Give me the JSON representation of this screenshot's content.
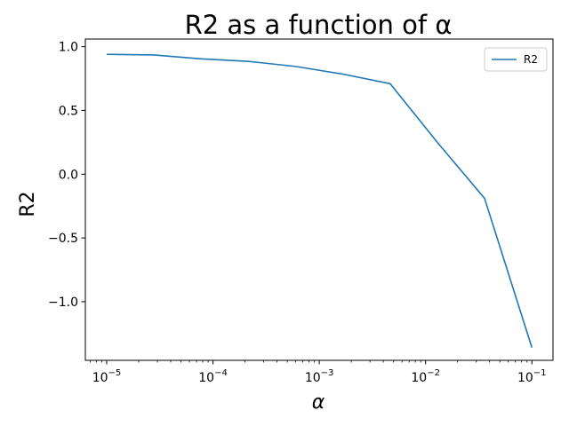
{
  "chart_data": {
    "type": "line",
    "title": "R2 as a function of α",
    "xlabel": "α",
    "ylabel": "R2",
    "xscale": "log",
    "xlim": [
      6.3e-06,
      0.158
    ],
    "ylim": [
      -1.46,
      1.06
    ],
    "x_ticks": [
      1e-05,
      0.0001,
      0.001,
      0.01,
      0.1
    ],
    "x_tick_labels": [
      {
        "base": "10",
        "exp": "−5"
      },
      {
        "base": "10",
        "exp": "−4"
      },
      {
        "base": "10",
        "exp": "−3"
      },
      {
        "base": "10",
        "exp": "−2"
      },
      {
        "base": "10",
        "exp": "−1"
      }
    ],
    "y_ticks": [
      1.0,
      0.5,
      0.0,
      -0.5,
      -1.0
    ],
    "y_tick_labels": [
      "1.0",
      "0.5",
      "0.0",
      "−0.5",
      "−1.0"
    ],
    "grid": false,
    "legend_position": "top-right",
    "series": [
      {
        "name": "R2",
        "color": "#1f77b4",
        "x": [
          1e-05,
          2.78e-05,
          7.74e-05,
          0.000215,
          0.000599,
          0.00167,
          0.00464,
          0.0129,
          0.0359,
          0.1
        ],
        "y": [
          0.94,
          0.935,
          0.905,
          0.885,
          0.845,
          0.785,
          0.71,
          0.25,
          -0.19,
          -1.36
        ]
      }
    ]
  }
}
